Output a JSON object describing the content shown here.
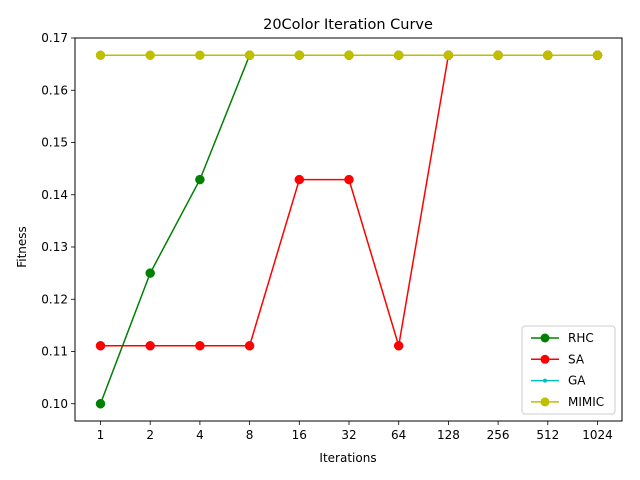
{
  "chart_data": {
    "type": "line",
    "title": "20Color Iteration Curve",
    "xlabel": "Iterations",
    "ylabel": "Fitness",
    "categories": [
      "1",
      "2",
      "4",
      "8",
      "16",
      "32",
      "64",
      "128",
      "256",
      "512",
      "1024"
    ],
    "ylim": [
      0.0967,
      0.17
    ],
    "yticks": [
      "0.10",
      "0.11",
      "0.12",
      "0.13",
      "0.14",
      "0.15",
      "0.16",
      "0.17"
    ],
    "ytick_values": [
      0.1,
      0.11,
      0.12,
      0.13,
      0.14,
      0.15,
      0.16,
      0.17
    ],
    "grid": false,
    "legend_position": "lower right",
    "series": [
      {
        "name": "RHC",
        "color": "#008000",
        "marker": "circle",
        "values": [
          0.1,
          0.125,
          0.1429,
          0.1667,
          0.1667,
          0.1667,
          0.1667,
          0.1667,
          0.1667,
          0.1667,
          0.1667
        ]
      },
      {
        "name": "SA",
        "color": "#ff0000",
        "marker": "circle",
        "values": [
          0.1111,
          0.1111,
          0.1111,
          0.1111,
          0.1429,
          0.1429,
          0.1111,
          0.1667,
          0.1667,
          0.1667,
          0.1667
        ]
      },
      {
        "name": "GA",
        "color": "#00bfbf",
        "marker": "point",
        "values": [
          0.1667,
          0.1667,
          0.1667,
          0.1667,
          0.1667,
          0.1667,
          0.1667,
          0.1667,
          0.1667,
          0.1667,
          0.1667
        ]
      },
      {
        "name": "MIMIC",
        "color": "#bfbf00",
        "marker": "circle",
        "values": [
          0.1667,
          0.1667,
          0.1667,
          0.1667,
          0.1667,
          0.1667,
          0.1667,
          0.1667,
          0.1667,
          0.1667,
          0.1667
        ]
      }
    ]
  }
}
